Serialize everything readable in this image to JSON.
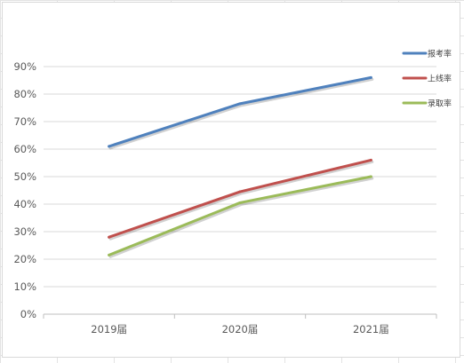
{
  "chart_data": {
    "type": "line",
    "categories": [
      "2019届",
      "2020届",
      "2021届"
    ],
    "series": [
      {
        "name": "报考率",
        "values": [
          61,
          76.5,
          86
        ],
        "color": "#4f81bd"
      },
      {
        "name": "上线率",
        "values": [
          28,
          44.5,
          56
        ],
        "color": "#c0504d"
      },
      {
        "name": "录取率",
        "values": [
          21.5,
          40.5,
          50
        ],
        "color": "#9bbb59"
      }
    ],
    "title": "",
    "xlabel": "",
    "ylabel": "",
    "ylim": [
      0,
      90
    ],
    "yticks": [
      "0%",
      "10%",
      "20%",
      "30%",
      "40%",
      "50%",
      "60%",
      "70%",
      "80%",
      "90%"
    ],
    "grid": true,
    "legend": "right"
  }
}
